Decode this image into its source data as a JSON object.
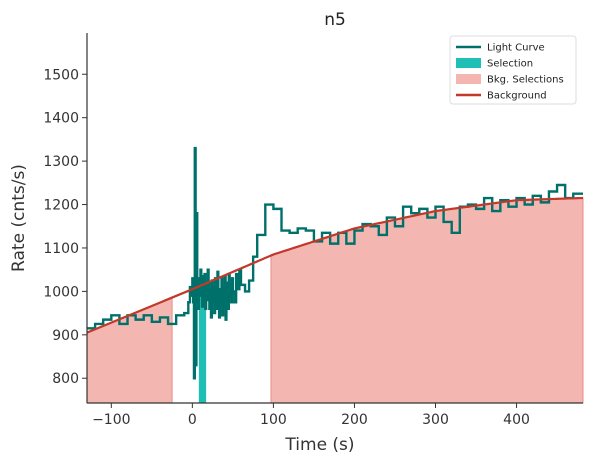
{
  "chart_data": {
    "type": "line",
    "title": "n5",
    "xlabel": "Time (s)",
    "ylabel": "Rate (cnts/s)",
    "xlim": [
      -130,
      482
    ],
    "ylim": [
      743,
      1595
    ],
    "xticks": [
      -100,
      0,
      100,
      200,
      300,
      400
    ],
    "xtick_labels": [
      "−100",
      "0",
      "100",
      "200",
      "300",
      "400"
    ],
    "yticks": [
      800,
      900,
      1000,
      1100,
      1200,
      1300,
      1400,
      1500
    ],
    "ytick_labels": [
      "800",
      "900",
      "1000",
      "1100",
      "1200",
      "1300",
      "1400",
      "1500"
    ],
    "legend_position": "top-right",
    "colors": {
      "light_curve": "#00706a",
      "selection": "#1fbfb5",
      "background_fill": "#f4b6b0",
      "background_edge": "#ea8f88",
      "background_line": "#c0392b",
      "axis": "#333333"
    },
    "legend": [
      {
        "label": "Light Curve",
        "kind": "line",
        "color": "#00706a"
      },
      {
        "label": "Selection",
        "kind": "patch",
        "color": "#1fbfb5"
      },
      {
        "label": "Bkg. Selections",
        "kind": "patch",
        "color": "#f4b6b0"
      },
      {
        "label": "Background",
        "kind": "line",
        "color": "#c0392b"
      }
    ],
    "background_fit": {
      "x": [
        -130,
        0,
        100,
        200,
        300,
        400,
        480
      ],
      "y": [
        905,
        1005,
        1085,
        1145,
        1185,
        1210,
        1215
      ]
    },
    "bkg_selections": [
      [
        -130,
        -25
      ],
      [
        97,
        482
      ]
    ],
    "selection": {
      "x_start": 8,
      "x_end": 17
    },
    "light_curve": {
      "x": [
        -130,
        -120,
        -110,
        -100,
        -90,
        -80,
        -70,
        -60,
        -50,
        -40,
        -30,
        -20,
        -10,
        -5,
        -3,
        -1,
        0,
        1,
        2,
        3,
        4,
        5,
        6,
        7,
        8,
        9,
        10,
        11,
        12,
        13,
        14,
        15,
        16,
        17,
        18,
        19,
        20,
        21,
        22,
        23,
        24,
        25,
        26,
        27,
        28,
        29,
        30,
        31,
        32,
        33,
        34,
        35,
        36,
        37,
        38,
        39,
        40,
        41,
        42,
        43,
        44,
        45,
        46,
        47,
        48,
        49,
        50,
        52,
        54,
        56,
        58,
        60,
        65,
        70,
        75,
        80,
        90,
        100,
        110,
        120,
        130,
        140,
        150,
        160,
        170,
        180,
        190,
        200,
        210,
        220,
        230,
        240,
        250,
        260,
        270,
        280,
        290,
        300,
        310,
        320,
        330,
        340,
        350,
        360,
        370,
        380,
        390,
        400,
        410,
        420,
        430,
        440,
        450,
        460,
        470
      ],
      "y": [
        915,
        925,
        935,
        945,
        925,
        945,
        935,
        945,
        930,
        940,
        925,
        945,
        950,
        975,
        1010,
        990,
        1030,
        975,
        800,
        1330,
        830,
        1180,
        1000,
        960,
        1030,
        1005,
        1050,
        990,
        965,
        1035,
        975,
        1040,
        960,
        1010,
        980,
        1050,
        1020,
        960,
        1000,
        940,
        1025,
        975,
        1010,
        950,
        1030,
        995,
        960,
        1045,
        985,
        940,
        1005,
        970,
        1030,
        945,
        1010,
        960,
        1035,
        935,
        1020,
        990,
        960,
        1040,
        990,
        1015,
        975,
        1030,
        1000,
        975,
        1040,
        1005,
        1050,
        1015,
        1000,
        1025,
        1080,
        1130,
        1200,
        1190,
        1140,
        1135,
        1145,
        1140,
        1115,
        1135,
        1110,
        1135,
        1110,
        1140,
        1155,
        1150,
        1130,
        1170,
        1150,
        1195,
        1180,
        1190,
        1170,
        1195,
        1160,
        1135,
        1195,
        1200,
        1190,
        1215,
        1185,
        1210,
        1195,
        1215,
        1200,
        1220,
        1205,
        1230,
        1245,
        1215,
        1225
      ]
    }
  }
}
